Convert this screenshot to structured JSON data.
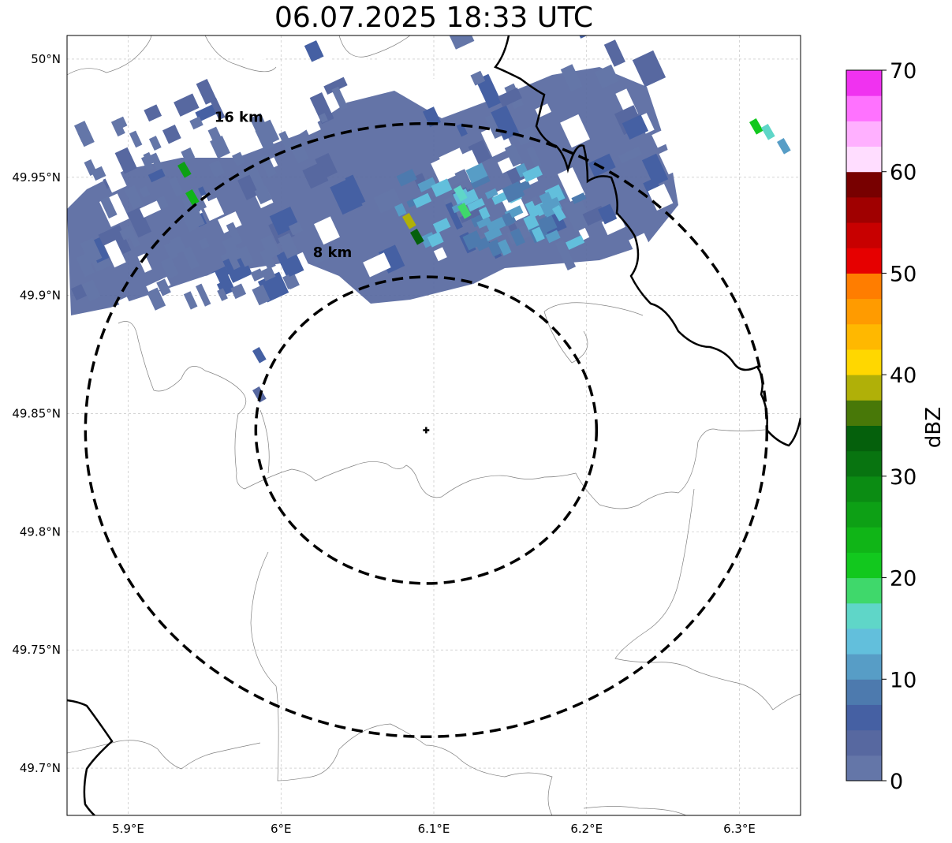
{
  "title": "06.07.2025 18:33 UTC",
  "map": {
    "lon_range": [
      5.86,
      6.34
    ],
    "lat_range": [
      49.68,
      50.01
    ],
    "lon_ticks": [
      {
        "value": 5.9,
        "label": "5.9°E"
      },
      {
        "value": 6.0,
        "label": "6°E"
      },
      {
        "value": 6.1,
        "label": "6.1°E"
      },
      {
        "value": 6.2,
        "label": "6.2°E"
      },
      {
        "value": 6.3,
        "label": "6.3°E"
      }
    ],
    "lat_ticks": [
      {
        "value": 50.0,
        "label": "50°N"
      },
      {
        "value": 49.95,
        "label": "49.95°N"
      },
      {
        "value": 49.9,
        "label": "49.9°N"
      },
      {
        "value": 49.85,
        "label": "49.85°N"
      },
      {
        "value": 49.8,
        "label": "49.8°N"
      },
      {
        "value": 49.75,
        "label": "49.75°N"
      },
      {
        "value": 49.7,
        "label": "49.7°N"
      }
    ],
    "grid": true,
    "radar_site": {
      "lon": 6.095,
      "lat": 49.843
    },
    "range_rings": [
      {
        "radius_km": 8,
        "label": "8 km"
      },
      {
        "radius_km": 16,
        "label": "16 km"
      }
    ]
  },
  "colorbar": {
    "label": "dBZ",
    "min": 0,
    "max": 70,
    "ticks": [
      "0",
      "10",
      "20",
      "30",
      "40",
      "50",
      "60",
      "70"
    ],
    "colors": [
      "#6476a8",
      "#5768a0",
      "#4560a3",
      "#4d7aae",
      "#579dc6",
      "#62bfdc",
      "#5fd6c8",
      "#3fd86b",
      "#12c81e",
      "#10b517",
      "#0da015",
      "#0b8c13",
      "#087410",
      "#05600c",
      "#487808",
      "#b0b008",
      "#ffd700",
      "#ffb800",
      "#ff9b00",
      "#ff7d00",
      "#e60000",
      "#c80000",
      "#a00000",
      "#780000",
      "#ffddff",
      "#ffb0ff",
      "#ff72ff",
      "#f032f0"
    ]
  },
  "colors": {
    "border_thick": "#000000",
    "border_thin": "#808080",
    "grid": "#bbbbbb"
  }
}
